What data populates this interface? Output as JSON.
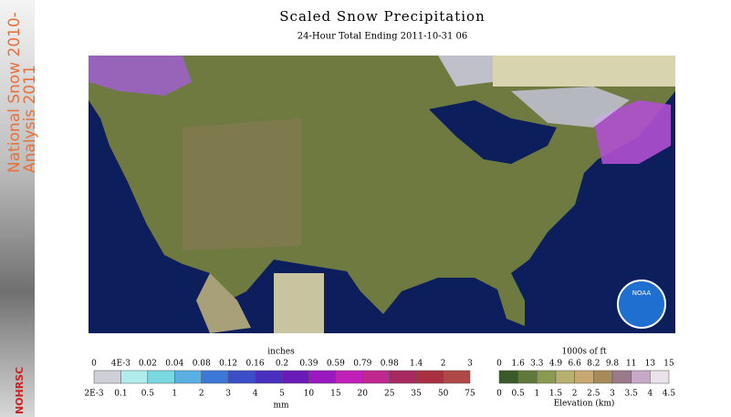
{
  "header": {
    "title": "Scaled Snow Precipitation",
    "subtitle": "24-Hour Total Ending 2011-10-31 06"
  },
  "sidebar": {
    "line1": "National Snow 2010-",
    "line2": "Analysis 2011",
    "logo": "NOHRSC"
  },
  "map": {
    "logo": "NOAA"
  },
  "precip_legend": {
    "top_unit": "inches",
    "bottom_unit": "mm",
    "top_labels": [
      "0",
      "4E-3",
      "0.02",
      "0.04",
      "0.08",
      "0.12",
      "0.16",
      "0.2",
      "0.39",
      "0.59",
      "0.79",
      "0.98",
      "1.4",
      "2",
      "3"
    ],
    "bottom_labels": [
      "2E-3",
      "0.1",
      "0.5",
      "1",
      "2",
      "3",
      "4",
      "5",
      "10",
      "15",
      "20",
      "25",
      "35",
      "50",
      "75"
    ],
    "colors": [
      "#cfcfd8",
      "#b0ecec",
      "#7ad8e0",
      "#5ab0e0",
      "#3c78d8",
      "#3a4ec8",
      "#4a2ec0",
      "#6a1ab8",
      "#9a18c0",
      "#c020b8",
      "#c02890",
      "#a82860",
      "#a83040",
      "#b04848"
    ]
  },
  "elev_legend": {
    "top_unit": "1000s of ft",
    "bottom_unit": "Elevation (km)",
    "top_labels": [
      "0",
      "1.6",
      "3.3",
      "4.9",
      "6.6",
      "8.2",
      "9.8",
      "11",
      "13",
      "15"
    ],
    "bottom_labels": [
      "0",
      "0.5",
      "1",
      "1.5",
      "2",
      "2.5",
      "3",
      "3.5",
      "4",
      "4.5"
    ],
    "colors": [
      "#3a5a2a",
      "#60783a",
      "#8a9a50",
      "#b8b070",
      "#c8a870",
      "#a88a58",
      "#9a7a8a",
      "#c8a8c8",
      "#eae2ea"
    ]
  }
}
